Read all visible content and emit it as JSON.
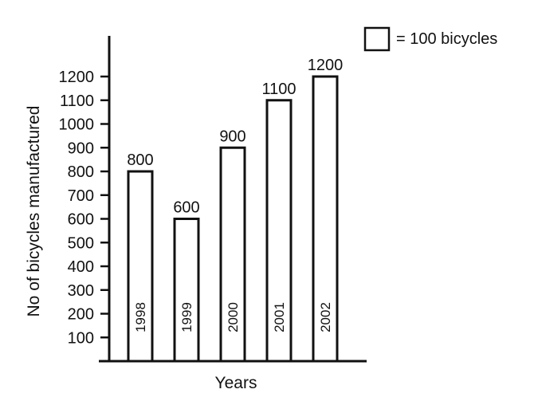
{
  "chart_data": {
    "type": "bar",
    "categories": [
      "1998",
      "1999",
      "2000",
      "2001",
      "2002"
    ],
    "values": [
      800,
      600,
      900,
      1100,
      1200
    ],
    "data_labels": [
      "800",
      "600",
      "900",
      "1100",
      "1200"
    ],
    "title": "",
    "xlabel": "Years",
    "ylabel": "No of bicycles manufactured",
    "yticks": [
      100,
      200,
      300,
      400,
      500,
      600,
      700,
      800,
      900,
      1000,
      1100,
      1200
    ],
    "ylim": [
      0,
      1200
    ],
    "grid": false,
    "legend": {
      "text": "= 100 bicycles",
      "position": "top-right"
    },
    "bar_fill": "#ffffff",
    "bar_stroke": "#111111",
    "category_label_orientation": "vertical-inside-bars"
  }
}
